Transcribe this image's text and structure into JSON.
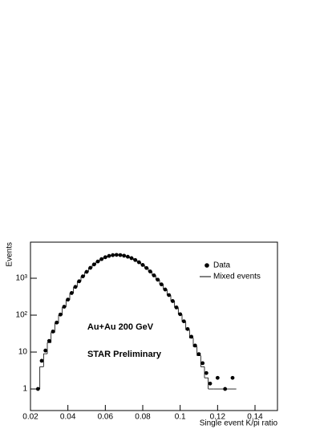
{
  "chart_data": {
    "type": "scatter",
    "xlabel": "Single event K/pi ratio",
    "ylabel": "Events",
    "annotations": [
      "Au+Au 200 GeV",
      "STAR Preliminary"
    ],
    "x": [
      0.024,
      0.026,
      0.028,
      0.03,
      0.032,
      0.034,
      0.036,
      0.038,
      0.04,
      0.042,
      0.044,
      0.046,
      0.048,
      0.05,
      0.052,
      0.054,
      0.056,
      0.058,
      0.06,
      0.062,
      0.064,
      0.066,
      0.068,
      0.07,
      0.072,
      0.074,
      0.076,
      0.078,
      0.08,
      0.082,
      0.084,
      0.086,
      0.088,
      0.09,
      0.092,
      0.094,
      0.096,
      0.098,
      0.1,
      0.102,
      0.104,
      0.106,
      0.108,
      0.11,
      0.112,
      0.114,
      0.116,
      0.12,
      0.124,
      0.128
    ],
    "series": [
      {
        "name": "Data",
        "color": "#000000",
        "style": "points",
        "values": [
          1,
          5.8,
          11,
          20,
          36,
          63,
          104,
          169,
          264,
          398,
          582,
          826,
          1126,
          1490,
          1913,
          2371,
          2845,
          3301,
          3706,
          4025,
          4230,
          4300,
          4245,
          4085,
          3832,
          3507,
          3122,
          2711,
          2296,
          1895,
          1524,
          1195,
          913,
          681,
          495,
          350,
          241,
          162,
          106,
          68,
          42,
          26,
          15,
          8.8,
          5,
          2.7,
          1.4,
          2,
          1,
          2
        ]
      },
      {
        "name": "Mixed events",
        "color": "#000000",
        "style": "step",
        "values": [
          1,
          4,
          9,
          18,
          34,
          60,
          100,
          165,
          260,
          395,
          580,
          820,
          1120,
          1480,
          1900,
          2360,
          2830,
          3290,
          3700,
          4010,
          4220,
          4290,
          4240,
          4080,
          3830,
          3500,
          3120,
          2710,
          2290,
          1890,
          1520,
          1190,
          910,
          680,
          495,
          345,
          240,
          160,
          105,
          66,
          40,
          24,
          14,
          8,
          4,
          2,
          1,
          1,
          1,
          1
        ]
      }
    ],
    "xlim": [
      0.02,
      0.152
    ],
    "xticks": [
      0.02,
      0.04,
      0.06,
      0.08,
      0.1,
      0.12,
      0.14
    ],
    "ylim": [
      0.26,
      9500
    ],
    "ylog": true,
    "yticks": [
      1,
      10,
      {
        "value": 100,
        "label": "10²"
      },
      {
        "value": 1000,
        "label": "10³"
      }
    ],
    "legend": "upper right"
  }
}
